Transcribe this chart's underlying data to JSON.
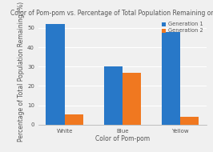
{
  "title": "Color of Pom-pom vs. Percentage of Total Population Remaining on Paper",
  "xlabel": "Color of Pom-pom",
  "ylabel": "Percentage of Total Population Remaining (%)",
  "categories": [
    "White",
    "Blue",
    "Yellow"
  ],
  "gen1_values": [
    52,
    30,
    48
  ],
  "gen2_values": [
    5.5,
    27,
    4
  ],
  "gen1_color": "#2878c8",
  "gen2_color": "#f07820",
  "legend_labels": [
    "Generation 1",
    "Generation 2"
  ],
  "ylim": [
    0,
    55
  ],
  "yticks": [
    0,
    10,
    20,
    30,
    40,
    50
  ],
  "background_color": "#f0f0f0",
  "title_fontsize": 5.5,
  "axis_label_fontsize": 5.5,
  "tick_fontsize": 5,
  "legend_fontsize": 4.8,
  "bar_width": 0.32
}
